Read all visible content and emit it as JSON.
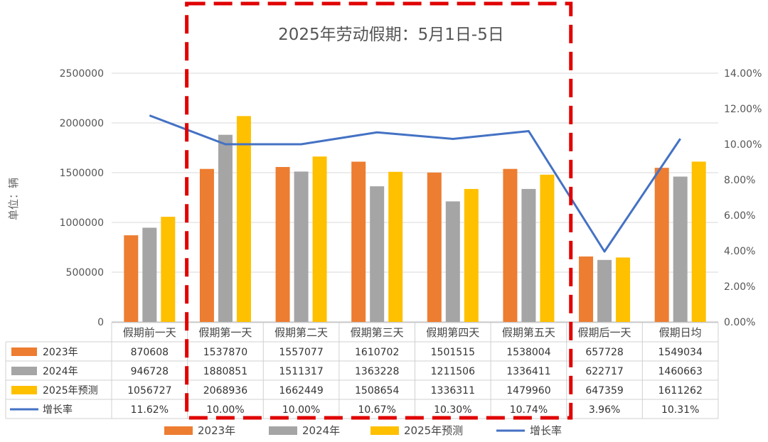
{
  "chart_data": {
    "type": "bar",
    "title": "2025年劳动假期：5月1日-5日",
    "ylabel": "单位：辆",
    "ylim": [
      0,
      2500000
    ],
    "y_ticks": [
      "0",
      "500000",
      "1000000",
      "1500000",
      "2000000",
      "2500000"
    ],
    "y2lim": [
      0,
      0.14
    ],
    "y2_ticks": [
      "0.00%",
      "2.00%",
      "4.00%",
      "6.00%",
      "8.00%",
      "10.00%",
      "12.00%",
      "14.00%"
    ],
    "categories": [
      "假期前一天",
      "假期第一天",
      "假期第二天",
      "假期第三天",
      "假期第四天",
      "假期第五天",
      "假期后一天",
      "假期日均"
    ],
    "series": [
      {
        "name": "2023年",
        "type": "bar",
        "color": "#ED7D31",
        "values": [
          870608,
          1537870,
          1557077,
          1610702,
          1501515,
          1538004,
          657728,
          1549034
        ],
        "labels": [
          "870608",
          "1537870",
          "1557077",
          "1610702",
          "1501515",
          "1538004",
          "657728",
          "1549034"
        ]
      },
      {
        "name": "2024年",
        "type": "bar",
        "color": "#A5A5A5",
        "values": [
          946728,
          1880851,
          1511317,
          1363228,
          1211506,
          1336411,
          622717,
          1460663
        ],
        "labels": [
          "946728",
          "1880851",
          "1511317",
          "1363228",
          "1211506",
          "1336411",
          "622717",
          "1460663"
        ]
      },
      {
        "name": "2025年预测",
        "type": "bar",
        "color": "#FFC000",
        "values": [
          1056727,
          2068936,
          1662449,
          1508654,
          1336311,
          1479960,
          647359,
          1611262
        ],
        "labels": [
          "1056727",
          "2068936",
          "1662449",
          "1508654",
          "1336311",
          "1479960",
          "647359",
          "1611262"
        ]
      },
      {
        "name": "增长率",
        "type": "line",
        "axis": "secondary",
        "color": "#4472C4",
        "values": [
          0.1162,
          0.1,
          0.1,
          0.1067,
          0.103,
          0.1074,
          0.0396,
          0.1031
        ],
        "labels": [
          "11.62%",
          "10.00%",
          "10.00%",
          "10.67%",
          "10.30%",
          "10.74%",
          "3.96%",
          "10.31%"
        ]
      }
    ],
    "grid": true,
    "legend": "bottom",
    "annotation": {
      "shape": "dashed-rectangle",
      "color": "#E00000",
      "categories": [
        "假期第一天",
        "假期第五天"
      ]
    }
  }
}
